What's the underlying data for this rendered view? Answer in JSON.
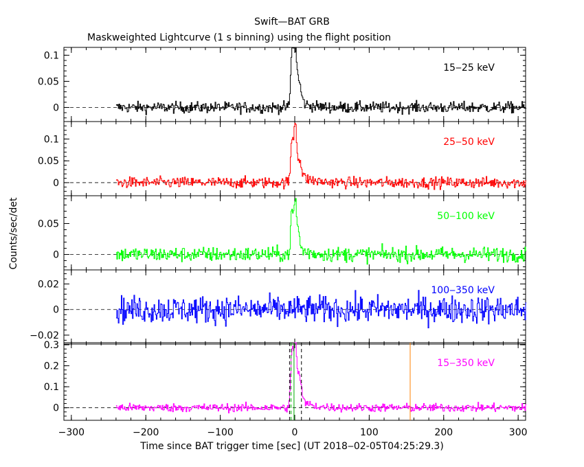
{
  "chart_data": {
    "type": "line",
    "title": "Swift—BAT GRB",
    "subtitle": "Maskweighted Lightcurve (1 s binning) using the flight position",
    "xlabel": "Time since BAT trigger time [sec] (UT 2018‒02‑05T04:25:29.3)",
    "ylabel": "Counts/sec/det",
    "xlim": [
      -310,
      310
    ],
    "x_ticks": [
      -300,
      -200,
      -100,
      0,
      100,
      200,
      300
    ],
    "x_tick_labels": [
      "−300",
      "−200",
      "−100",
      "0",
      "100",
      "200",
      "300"
    ],
    "data_x_range": [
      -240,
      310
    ],
    "panels": [
      {
        "label": "15‒25 keV",
        "color": "#000000",
        "ylim": [
          -0.027,
          0.115
        ],
        "y_ticks": [
          0,
          0.05,
          0.1
        ],
        "y_tick_labels": [
          "0",
          "0.05",
          "0.1"
        ],
        "noise": 0.0075,
        "peaks": [
          {
            "t": -4,
            "amp": 0.105,
            "w": 1.8
          },
          {
            "t": 0,
            "amp": 0.09,
            "w": 2
          },
          {
            "t": 5,
            "amp": 0.035,
            "w": 3
          }
        ],
        "tail": {
          "amp": 0.02,
          "tau": 12
        }
      },
      {
        "label": "25‒50 keV",
        "color": "#ff0000",
        "ylim": [
          -0.03,
          0.14
        ],
        "y_ticks": [
          0,
          0.05,
          0.1
        ],
        "y_tick_labels": [
          "0",
          "0.05",
          "0.1"
        ],
        "noise": 0.009,
        "peaks": [
          {
            "t": -4,
            "amp": 0.1,
            "w": 1.8
          },
          {
            "t": 0,
            "amp": 0.12,
            "w": 1.5
          },
          {
            "t": 5,
            "amp": 0.04,
            "w": 3
          }
        ],
        "tail": {
          "amp": 0.025,
          "tau": 15
        }
      },
      {
        "label": "50‒100 keV",
        "color": "#00ff00",
        "ylim": [
          -0.025,
          0.095
        ],
        "y_ticks": [
          0,
          0.05
        ],
        "y_tick_labels": [
          "0",
          "0.05"
        ],
        "noise": 0.0085,
        "peaks": [
          {
            "t": -4,
            "amp": 0.07,
            "w": 1.8
          },
          {
            "t": 0,
            "amp": 0.075,
            "w": 1.5
          },
          {
            "t": 4,
            "amp": 0.03,
            "w": 2
          }
        ],
        "tail": {
          "amp": 0.015,
          "tau": 12
        }
      },
      {
        "label": "100‒350 keV",
        "color": "#0000ff",
        "ylim": [
          -0.027,
          0.031
        ],
        "y_ticks": [
          -0.02,
          0,
          0.02
        ],
        "y_tick_labels": [
          "−0.02",
          "0",
          "0.02"
        ],
        "noise": 0.0075,
        "peaks": [],
        "tail": {
          "amp": 0,
          "tau": 10
        }
      },
      {
        "label": "15‒350 keV",
        "color": "#ff00ff",
        "ylim": [
          -0.06,
          0.31
        ],
        "y_ticks": [
          0,
          0.1,
          0.2,
          0.3
        ],
        "y_tick_labels": [
          "0",
          "0.1",
          "0.2",
          "0.3"
        ],
        "noise": 0.014,
        "peaks": [
          {
            "t": -4,
            "amp": 0.28,
            "w": 1.8
          },
          {
            "t": 0,
            "amp": 0.3,
            "w": 1.5
          },
          {
            "t": 5,
            "amp": 0.12,
            "w": 3
          }
        ],
        "tail": {
          "amp": 0.06,
          "tau": 14
        },
        "markers": [
          {
            "x": -7,
            "style": "dashed",
            "color": "#000000"
          },
          {
            "x": 9,
            "style": "dashed",
            "color": "#000000"
          },
          {
            "x": -5,
            "style": "dashed",
            "color": "#00aa00"
          },
          {
            "x": -1,
            "style": "solid",
            "color": "#00aa00"
          },
          {
            "x": 155,
            "style": "solid",
            "color": "#ff8000"
          }
        ]
      }
    ]
  }
}
